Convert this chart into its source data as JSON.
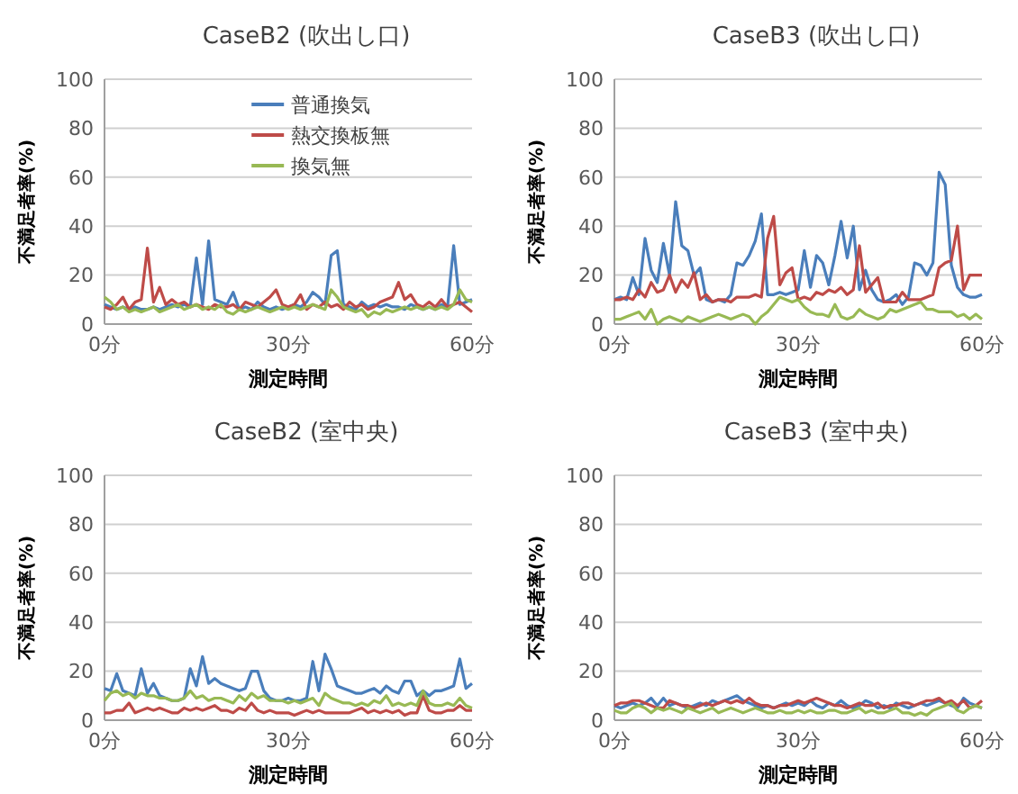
{
  "chart_data": [
    {
      "type": "line",
      "title": "CaseB2 (吹出し口)",
      "xlabel": "測定時間",
      "ylabel": "不満足者率(%)",
      "legend": "top",
      "grid": "y",
      "xlim": [
        0,
        60
      ],
      "xticks": [
        {
          "value": 0,
          "label": "0分"
        },
        {
          "value": 30,
          "label": "30分"
        },
        {
          "value": 60,
          "label": "60分"
        }
      ],
      "ylim": [
        0,
        100
      ],
      "yticks": [
        0,
        20,
        40,
        60,
        80,
        100
      ],
      "x": [
        0,
        1,
        2,
        3,
        4,
        5,
        6,
        7,
        8,
        9,
        10,
        11,
        12,
        13,
        14,
        15,
        16,
        17,
        18,
        19,
        20,
        21,
        22,
        23,
        24,
        25,
        26,
        27,
        28,
        29,
        30,
        31,
        32,
        33,
        34,
        35,
        36,
        37,
        38,
        39,
        40,
        41,
        42,
        43,
        44,
        45,
        46,
        47,
        48,
        49,
        50,
        51,
        52,
        53,
        54,
        55,
        56,
        57,
        58,
        59,
        60
      ],
      "series": [
        {
          "name": "普通換気",
          "color": "#4a7ebb",
          "values": [
            8,
            7,
            6,
            7,
            6,
            7,
            6,
            6,
            7,
            6,
            7,
            8,
            7,
            8,
            7,
            27,
            8,
            34,
            10,
            9,
            8,
            13,
            6,
            7,
            6,
            9,
            7,
            6,
            7,
            6,
            7,
            8,
            7,
            9,
            13,
            11,
            8,
            28,
            30,
            8,
            7,
            6,
            9,
            7,
            8,
            7,
            8,
            7,
            7,
            6,
            8,
            7,
            6,
            7,
            6,
            8,
            7,
            32,
            8,
            9,
            10
          ]
        },
        {
          "name": "熱交換板無",
          "color": "#be4b48",
          "values": [
            7,
            6,
            8,
            11,
            6,
            9,
            10,
            31,
            9,
            15,
            8,
            10,
            8,
            9,
            7,
            8,
            7,
            6,
            8,
            7,
            7,
            8,
            6,
            9,
            8,
            7,
            9,
            11,
            14,
            8,
            7,
            8,
            12,
            6,
            8,
            7,
            9,
            7,
            8,
            6,
            9,
            7,
            8,
            6,
            7,
            9,
            10,
            11,
            17,
            10,
            12,
            8,
            7,
            9,
            7,
            10,
            7,
            8,
            9,
            7,
            5
          ]
        },
        {
          "name": "換気無",
          "color": "#98b954",
          "values": [
            11,
            9,
            6,
            7,
            5,
            6,
            5,
            6,
            7,
            5,
            6,
            7,
            8,
            6,
            7,
            8,
            6,
            7,
            6,
            8,
            5,
            4,
            6,
            5,
            6,
            7,
            6,
            5,
            6,
            7,
            6,
            7,
            6,
            7,
            8,
            7,
            6,
            14,
            11,
            7,
            6,
            5,
            6,
            3,
            5,
            4,
            6,
            5,
            6,
            7,
            6,
            7,
            6,
            7,
            6,
            7,
            6,
            8,
            14,
            10,
            9
          ]
        }
      ]
    },
    {
      "type": "line",
      "title": "CaseB3 (吹出し口)",
      "xlabel": "測定時間",
      "ylabel": "不満足者率(%)",
      "grid": "y",
      "xlim": [
        0,
        60
      ],
      "xticks": [
        {
          "value": 0,
          "label": "0分"
        },
        {
          "value": 30,
          "label": "30分"
        },
        {
          "value": 60,
          "label": "60分"
        }
      ],
      "ylim": [
        0,
        100
      ],
      "yticks": [
        0,
        20,
        40,
        60,
        80,
        100
      ],
      "x": [
        0,
        1,
        2,
        3,
        4,
        5,
        6,
        7,
        8,
        9,
        10,
        11,
        12,
        13,
        14,
        15,
        16,
        17,
        18,
        19,
        20,
        21,
        22,
        23,
        24,
        25,
        26,
        27,
        28,
        29,
        30,
        31,
        32,
        33,
        34,
        35,
        36,
        37,
        38,
        39,
        40,
        41,
        42,
        43,
        44,
        45,
        46,
        47,
        48,
        49,
        50,
        51,
        52,
        53,
        54,
        55,
        56,
        57,
        58,
        59,
        60
      ],
      "series": [
        {
          "color": "#4a7ebb",
          "values": [
            10,
            11,
            10,
            19,
            12,
            35,
            22,
            17,
            33,
            20,
            50,
            32,
            30,
            20,
            23,
            10,
            9,
            10,
            9,
            12,
            25,
            24,
            28,
            34,
            45,
            12,
            12,
            13,
            12,
            13,
            14,
            30,
            15,
            28,
            25,
            16,
            28,
            42,
            27,
            40,
            14,
            22,
            14,
            10,
            9,
            10,
            12,
            8,
            11,
            25,
            24,
            20,
            25,
            62,
            57,
            24,
            15,
            12,
            11,
            11,
            12
          ]
        },
        {
          "color": "#be4b48",
          "values": [
            10,
            10,
            11,
            10,
            14,
            11,
            17,
            13,
            14,
            20,
            13,
            18,
            15,
            21,
            10,
            12,
            9,
            10,
            10,
            9,
            11,
            11,
            11,
            12,
            11,
            35,
            44,
            16,
            21,
            23,
            10,
            11,
            10,
            13,
            12,
            14,
            13,
            15,
            12,
            14,
            32,
            13,
            16,
            19,
            9,
            9,
            9,
            13,
            10,
            10,
            10,
            11,
            12,
            23,
            25,
            26,
            40,
            14,
            20,
            20,
            20
          ]
        },
        {
          "color": "#98b954",
          "values": [
            2,
            2,
            3,
            4,
            5,
            2,
            6,
            0,
            2,
            3,
            2,
            1,
            3,
            2,
            1,
            2,
            3,
            4,
            3,
            2,
            3,
            4,
            3,
            0,
            3,
            5,
            8,
            11,
            10,
            9,
            10,
            7,
            5,
            4,
            4,
            3,
            8,
            3,
            2,
            3,
            6,
            4,
            3,
            2,
            3,
            6,
            5,
            6,
            7,
            8,
            9,
            6,
            6,
            5,
            5,
            5,
            3,
            4,
            2,
            4,
            2
          ]
        }
      ]
    },
    {
      "type": "line",
      "title": "CaseB2 (室中央)",
      "xlabel": "測定時間",
      "ylabel": "不満足者率(%)",
      "grid": "y",
      "xlim": [
        0,
        60
      ],
      "xticks": [
        {
          "value": 0,
          "label": "0分"
        },
        {
          "value": 30,
          "label": "30分"
        },
        {
          "value": 60,
          "label": "60分"
        }
      ],
      "ylim": [
        0,
        100
      ],
      "yticks": [
        0,
        20,
        40,
        60,
        80,
        100
      ],
      "x": [
        0,
        1,
        2,
        3,
        4,
        5,
        6,
        7,
        8,
        9,
        10,
        11,
        12,
        13,
        14,
        15,
        16,
        17,
        18,
        19,
        20,
        21,
        22,
        23,
        24,
        25,
        26,
        27,
        28,
        29,
        30,
        31,
        32,
        33,
        34,
        35,
        36,
        37,
        38,
        39,
        40,
        41,
        42,
        43,
        44,
        45,
        46,
        47,
        48,
        49,
        50,
        51,
        52,
        53,
        54,
        55,
        56,
        57,
        58,
        59,
        60
      ],
      "series": [
        {
          "color": "#4a7ebb",
          "values": [
            13,
            12,
            19,
            12,
            11,
            10,
            21,
            11,
            15,
            10,
            9,
            8,
            8,
            9,
            21,
            14,
            26,
            15,
            17,
            15,
            14,
            13,
            12,
            13,
            20,
            20,
            12,
            9,
            8,
            8,
            9,
            8,
            8,
            9,
            24,
            12,
            27,
            21,
            14,
            13,
            12,
            11,
            11,
            12,
            13,
            11,
            14,
            12,
            11,
            16,
            16,
            10,
            12,
            10,
            12,
            12,
            13,
            14,
            25,
            13,
            15
          ]
        },
        {
          "color": "#be4b48",
          "values": [
            3,
            3,
            4,
            4,
            7,
            3,
            4,
            5,
            4,
            5,
            4,
            3,
            3,
            5,
            4,
            5,
            4,
            5,
            6,
            4,
            4,
            3,
            5,
            4,
            7,
            4,
            3,
            4,
            3,
            3,
            3,
            2,
            3,
            4,
            3,
            4,
            3,
            3,
            3,
            3,
            3,
            4,
            5,
            3,
            4,
            3,
            4,
            3,
            4,
            2,
            3,
            3,
            10,
            4,
            3,
            3,
            4,
            4,
            6,
            4,
            4
          ]
        },
        {
          "color": "#98b954",
          "values": [
            8,
            11,
            12,
            10,
            11,
            9,
            11,
            10,
            10,
            9,
            9,
            8,
            8,
            9,
            12,
            9,
            10,
            8,
            9,
            9,
            8,
            7,
            10,
            8,
            11,
            9,
            10,
            8,
            8,
            8,
            7,
            8,
            7,
            8,
            9,
            6,
            11,
            9,
            8,
            7,
            7,
            6,
            7,
            6,
            8,
            7,
            10,
            6,
            7,
            6,
            7,
            6,
            12,
            7,
            6,
            6,
            7,
            6,
            9,
            6,
            5
          ]
        }
      ]
    },
    {
      "type": "line",
      "title": "CaseB3 (室中央)",
      "xlabel": "測定時間",
      "ylabel": "不満足者率(%)",
      "grid": "y",
      "xlim": [
        0,
        60
      ],
      "xticks": [
        {
          "value": 0,
          "label": "0分"
        },
        {
          "value": 30,
          "label": "30分"
        },
        {
          "value": 60,
          "label": "60分"
        }
      ],
      "ylim": [
        0,
        100
      ],
      "yticks": [
        0,
        20,
        40,
        60,
        80,
        100
      ],
      "x": [
        0,
        1,
        2,
        3,
        4,
        5,
        6,
        7,
        8,
        9,
        10,
        11,
        12,
        13,
        14,
        15,
        16,
        17,
        18,
        19,
        20,
        21,
        22,
        23,
        24,
        25,
        26,
        27,
        28,
        29,
        30,
        31,
        32,
        33,
        34,
        35,
        36,
        37,
        38,
        39,
        40,
        41,
        42,
        43,
        44,
        45,
        46,
        47,
        48,
        49,
        50,
        51,
        52,
        53,
        54,
        55,
        56,
        57,
        58,
        59,
        60
      ],
      "series": [
        {
          "color": "#4a7ebb",
          "values": [
            6,
            5,
            6,
            7,
            6,
            7,
            9,
            6,
            9,
            6,
            7,
            6,
            5,
            6,
            7,
            6,
            8,
            7,
            8,
            9,
            10,
            8,
            7,
            6,
            5,
            6,
            5,
            6,
            7,
            6,
            7,
            6,
            8,
            6,
            5,
            7,
            6,
            8,
            6,
            5,
            6,
            8,
            7,
            5,
            6,
            5,
            7,
            6,
            5,
            6,
            7,
            6,
            7,
            8,
            7,
            6,
            5,
            9,
            7,
            6,
            5
          ]
        },
        {
          "color": "#be4b48",
          "values": [
            6,
            7,
            7,
            8,
            8,
            7,
            6,
            5,
            5,
            8,
            7,
            6,
            6,
            5,
            6,
            7,
            6,
            7,
            8,
            7,
            8,
            7,
            9,
            7,
            6,
            6,
            5,
            6,
            6,
            7,
            8,
            7,
            8,
            9,
            8,
            7,
            6,
            6,
            5,
            6,
            7,
            6,
            6,
            7,
            5,
            6,
            6,
            7,
            7,
            6,
            7,
            8,
            8,
            9,
            7,
            8,
            6,
            8,
            5,
            6,
            8
          ]
        },
        {
          "color": "#98b954",
          "values": [
            4,
            3,
            3,
            5,
            6,
            5,
            3,
            5,
            4,
            5,
            4,
            3,
            5,
            4,
            3,
            4,
            5,
            3,
            4,
            5,
            4,
            3,
            4,
            5,
            4,
            3,
            3,
            4,
            3,
            3,
            4,
            3,
            4,
            3,
            3,
            4,
            4,
            3,
            3,
            4,
            5,
            3,
            4,
            3,
            3,
            4,
            5,
            3,
            3,
            2,
            3,
            2,
            4,
            5,
            6,
            7,
            4,
            3,
            5,
            6,
            5
          ]
        }
      ]
    }
  ]
}
